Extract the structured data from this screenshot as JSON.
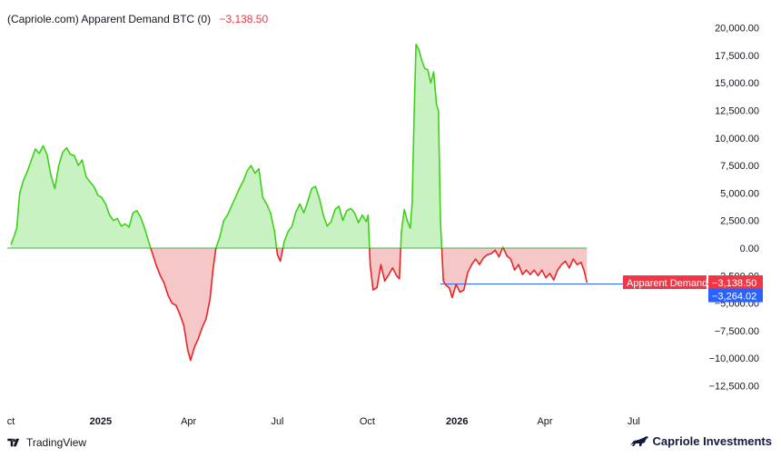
{
  "header": {
    "title": "(Capriole.com) Apparent Demand BTC (0)",
    "current_value": "−3,138.50"
  },
  "footer": {
    "brand_left": "TradingView",
    "brand_right": "Capriole Investments"
  },
  "colors": {
    "positive_line": "#3fd11a",
    "positive_fill": "#c8f2c2",
    "negative_line": "#e8252a",
    "negative_fill": "#f6c7c7",
    "zero_line": "#4caf50",
    "reference_line": "#2962ff",
    "red_tag": "#f23645",
    "blue_tag": "#2962ff"
  },
  "chart_data": {
    "type": "area",
    "title": "(Capriole.com) Apparent Demand BTC (0)",
    "series_name": "Apparent Demand",
    "ylim": [
      -13500,
      20500
    ],
    "y_ticks": [
      "20,000.00",
      "17,500.00",
      "15,000.00",
      "12,500.00",
      "10,000.00",
      "7,500.00",
      "5,000.00",
      "2,500.00",
      "0.00",
      "−2,500.00",
      "−5,000.00",
      "−7,500.00",
      "−10,000.00",
      "−12,500.00"
    ],
    "y_tick_values": [
      20000,
      17500,
      15000,
      12500,
      10000,
      7500,
      5000,
      2500,
      0,
      -2500,
      -5000,
      -7500,
      -10000,
      -12500
    ],
    "x_ticks": [
      {
        "label": "ct",
        "bold": false,
        "date": "2024-10-01"
      },
      {
        "label": "2025",
        "bold": true,
        "date": "2025-01-01"
      },
      {
        "label": "Apr",
        "bold": false,
        "date": "2025-04-01"
      },
      {
        "label": "Jul",
        "bold": false,
        "date": "2025-07-01"
      },
      {
        "label": "Oct",
        "bold": false,
        "date": "2025-10-01"
      },
      {
        "label": "2026",
        "bold": true,
        "date": "2026-01-01"
      },
      {
        "label": "Apr",
        "bold": false,
        "date": "2026-04-01"
      },
      {
        "label": "Jul",
        "bold": false,
        "date": "2026-07-01"
      }
    ],
    "last_value": -3138.5,
    "last_value_label": "−3,138.50",
    "series_label": "Apparent Demand",
    "reference_value": -3264.02,
    "reference_label": "−3,264.02",
    "reference_start_date": "2025-12-15",
    "points": [
      [
        "2024-10-01",
        300
      ],
      [
        "2024-10-04",
        1000
      ],
      [
        "2024-10-07",
        1800
      ],
      [
        "2024-10-10",
        5000
      ],
      [
        "2024-10-14",
        6200
      ],
      [
        "2024-10-18",
        7000
      ],
      [
        "2024-10-22",
        8000
      ],
      [
        "2024-10-26",
        9000
      ],
      [
        "2024-10-30",
        8600
      ],
      [
        "2024-11-03",
        9300
      ],
      [
        "2024-11-07",
        8500
      ],
      [
        "2024-11-11",
        6600
      ],
      [
        "2024-11-15",
        5400
      ],
      [
        "2024-11-19",
        7500
      ],
      [
        "2024-11-23",
        8700
      ],
      [
        "2024-11-27",
        9100
      ],
      [
        "2024-12-01",
        8500
      ],
      [
        "2024-12-05",
        8400
      ],
      [
        "2024-12-09",
        7500
      ],
      [
        "2024-12-13",
        8000
      ],
      [
        "2024-12-17",
        6500
      ],
      [
        "2024-12-21",
        6000
      ],
      [
        "2024-12-25",
        5600
      ],
      [
        "2024-12-29",
        4800
      ],
      [
        "2025-01-02",
        4600
      ],
      [
        "2025-01-06",
        4000
      ],
      [
        "2025-01-10",
        3000
      ],
      [
        "2025-01-14",
        2500
      ],
      [
        "2025-01-18",
        2700
      ],
      [
        "2025-01-22",
        2000
      ],
      [
        "2025-01-26",
        2200
      ],
      [
        "2025-01-30",
        1900
      ],
      [
        "2025-02-03",
        3200
      ],
      [
        "2025-02-07",
        3400
      ],
      [
        "2025-02-11",
        2800
      ],
      [
        "2025-02-15",
        1800
      ],
      [
        "2025-02-19",
        600
      ],
      [
        "2025-02-23",
        -500
      ],
      [
        "2025-02-27",
        -1600
      ],
      [
        "2025-03-03",
        -2500
      ],
      [
        "2025-03-07",
        -3200
      ],
      [
        "2025-03-11",
        -4300
      ],
      [
        "2025-03-15",
        -5000
      ],
      [
        "2025-03-19",
        -5200
      ],
      [
        "2025-03-23",
        -6000
      ],
      [
        "2025-03-27",
        -7000
      ],
      [
        "2025-03-31",
        -9200
      ],
      [
        "2025-04-03",
        -10200
      ],
      [
        "2025-04-07",
        -9000
      ],
      [
        "2025-04-11",
        -8200
      ],
      [
        "2025-04-15",
        -7200
      ],
      [
        "2025-04-19",
        -6400
      ],
      [
        "2025-04-23",
        -4600
      ],
      [
        "2025-04-26",
        -2000
      ],
      [
        "2025-04-29",
        0
      ],
      [
        "2025-05-03",
        1000
      ],
      [
        "2025-05-07",
        2500
      ],
      [
        "2025-05-11",
        3000
      ],
      [
        "2025-05-15",
        3800
      ],
      [
        "2025-05-19",
        4600
      ],
      [
        "2025-05-23",
        5400
      ],
      [
        "2025-05-27",
        6100
      ],
      [
        "2025-05-31",
        7000
      ],
      [
        "2025-06-04",
        7500
      ],
      [
        "2025-06-08",
        6800
      ],
      [
        "2025-06-12",
        7200
      ],
      [
        "2025-06-16",
        4600
      ],
      [
        "2025-06-20",
        4000
      ],
      [
        "2025-06-24",
        3200
      ],
      [
        "2025-06-28",
        1500
      ],
      [
        "2025-07-01",
        -600
      ],
      [
        "2025-07-04",
        -1200
      ],
      [
        "2025-07-08",
        600
      ],
      [
        "2025-07-12",
        1500
      ],
      [
        "2025-07-16",
        2000
      ],
      [
        "2025-07-20",
        3300
      ],
      [
        "2025-07-24",
        4000
      ],
      [
        "2025-07-28",
        3200
      ],
      [
        "2025-08-01",
        4200
      ],
      [
        "2025-08-05",
        5400
      ],
      [
        "2025-08-09",
        5600
      ],
      [
        "2025-08-13",
        4500
      ],
      [
        "2025-08-17",
        3000
      ],
      [
        "2025-08-21",
        2000
      ],
      [
        "2025-08-25",
        2400
      ],
      [
        "2025-08-29",
        3500
      ],
      [
        "2025-09-02",
        3800
      ],
      [
        "2025-09-06",
        2500
      ],
      [
        "2025-09-10",
        3400
      ],
      [
        "2025-09-14",
        3600
      ],
      [
        "2025-09-18",
        3200
      ],
      [
        "2025-09-22",
        2300
      ],
      [
        "2025-09-26",
        3000
      ],
      [
        "2025-09-30",
        2400
      ],
      [
        "2025-10-02",
        3000
      ],
      [
        "2025-10-04",
        -1500
      ],
      [
        "2025-10-07",
        -3800
      ],
      [
        "2025-10-11",
        -3600
      ],
      [
        "2025-10-15",
        -1500
      ],
      [
        "2025-10-19",
        -3000
      ],
      [
        "2025-10-23",
        -2400
      ],
      [
        "2025-10-27",
        -1800
      ],
      [
        "2025-10-31",
        -2500
      ],
      [
        "2025-11-03",
        -2800
      ],
      [
        "2025-11-05",
        1500
      ],
      [
        "2025-11-08",
        3500
      ],
      [
        "2025-11-11",
        2500
      ],
      [
        "2025-11-14",
        1800
      ],
      [
        "2025-11-16",
        4000
      ],
      [
        "2025-11-18",
        12000
      ],
      [
        "2025-11-20",
        18500
      ],
      [
        "2025-11-23",
        18000
      ],
      [
        "2025-11-26",
        17000
      ],
      [
        "2025-11-29",
        16300
      ],
      [
        "2025-12-02",
        16200
      ],
      [
        "2025-12-05",
        15000
      ],
      [
        "2025-12-08",
        16000
      ],
      [
        "2025-12-11",
        13000
      ],
      [
        "2025-12-13",
        12500
      ],
      [
        "2025-12-15",
        2500
      ],
      [
        "2025-12-18",
        -3000
      ],
      [
        "2025-12-21",
        -3400
      ],
      [
        "2025-12-24",
        -3600
      ],
      [
        "2025-12-27",
        -4500
      ],
      [
        "2025-12-31",
        -3300
      ],
      [
        "2026-01-04",
        -4000
      ],
      [
        "2026-01-08",
        -3800
      ],
      [
        "2026-01-12",
        -2200
      ],
      [
        "2026-01-16",
        -1500
      ],
      [
        "2026-01-20",
        -1000
      ],
      [
        "2026-01-24",
        -1500
      ],
      [
        "2026-01-28",
        -900
      ],
      [
        "2026-02-01",
        -600
      ],
      [
        "2026-02-05",
        -500
      ],
      [
        "2026-02-09",
        -200
      ],
      [
        "2026-02-13",
        -800
      ],
      [
        "2026-02-17",
        100
      ],
      [
        "2026-02-21",
        -700
      ],
      [
        "2026-02-25",
        -1000
      ],
      [
        "2026-03-01",
        -2000
      ],
      [
        "2026-03-05",
        -1500
      ],
      [
        "2026-03-09",
        -2400
      ],
      [
        "2026-03-13",
        -2000
      ],
      [
        "2026-03-17",
        -2400
      ],
      [
        "2026-03-21",
        -2000
      ],
      [
        "2026-03-25",
        -2500
      ],
      [
        "2026-03-29",
        -2000
      ],
      [
        "2026-04-02",
        -2700
      ],
      [
        "2026-04-06",
        -2300
      ],
      [
        "2026-04-10",
        -2900
      ],
      [
        "2026-04-14",
        -2000
      ],
      [
        "2026-04-18",
        -1500
      ],
      [
        "2026-04-22",
        -1200
      ],
      [
        "2026-04-26",
        -1800
      ],
      [
        "2026-04-30",
        -1000
      ],
      [
        "2026-05-04",
        -1500
      ],
      [
        "2026-05-08",
        -1300
      ],
      [
        "2026-05-11",
        -2000
      ],
      [
        "2026-05-14",
        -3138.5
      ]
    ]
  }
}
